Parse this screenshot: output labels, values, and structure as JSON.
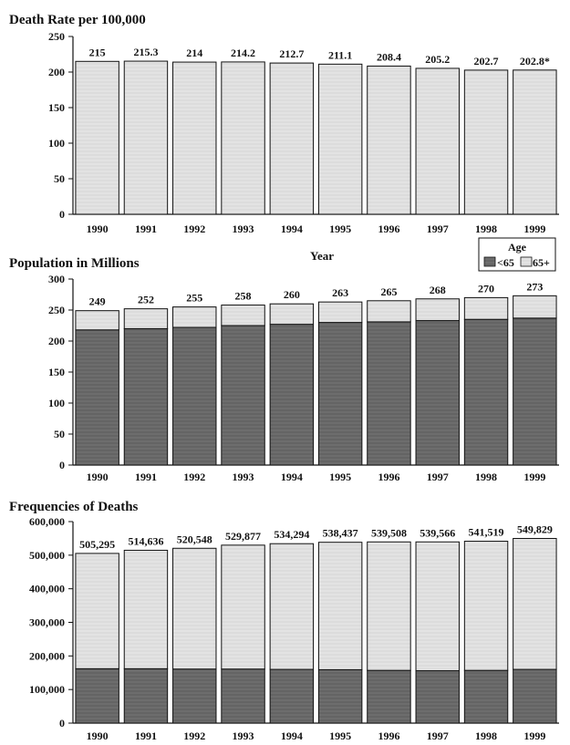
{
  "colors": {
    "light": "#e3e3e3",
    "dark": "#6d6d6d",
    "edge": "#111111"
  },
  "legend": {
    "title": "Age",
    "items": [
      "<65",
      "65+"
    ],
    "colors": [
      "#6d6d6d",
      "#e3e3e3"
    ]
  },
  "chart_data": [
    {
      "type": "bar",
      "title": "Death Rate per 100,000",
      "xlabel": "Year",
      "ylabel": "",
      "categories": [
        "1990",
        "1991",
        "1992",
        "1993",
        "1994",
        "1995",
        "1996",
        "1997",
        "1998",
        "1999"
      ],
      "ylim": [
        0,
        250
      ],
      "yticks": [
        "0",
        "50",
        "100",
        "150",
        "200",
        "250"
      ],
      "series": [
        {
          "values": [
            215,
            215.3,
            214,
            214.2,
            212.7,
            211.1,
            208.4,
            205.2,
            202.7,
            202.8
          ]
        }
      ],
      "value_labels": [
        "215",
        "215.3",
        "214",
        "214.2",
        "212.7",
        "211.1",
        "208.4",
        "205.2",
        "202.7",
        "202.8*"
      ]
    },
    {
      "type": "bar",
      "stacked": true,
      "title": "Population in Millions",
      "xlabel": "",
      "ylabel": "",
      "categories": [
        "1990",
        "1991",
        "1992",
        "1993",
        "1994",
        "1995",
        "1996",
        "1997",
        "1998",
        "1999"
      ],
      "ylim": [
        0,
        300
      ],
      "yticks": [
        "0",
        "50",
        "100",
        "150",
        "200",
        "250",
        "300"
      ],
      "series": [
        {
          "name": "<65",
          "values": [
            218,
            220,
            222,
            225,
            227,
            230,
            231,
            233,
            235,
            237
          ]
        },
        {
          "name": "65+",
          "values": [
            31,
            32,
            33,
            33,
            33,
            33,
            34,
            35,
            35,
            36
          ]
        }
      ],
      "value_labels": [
        "249",
        "252",
        "255",
        "258",
        "260",
        "263",
        "265",
        "268",
        "270",
        "273"
      ]
    },
    {
      "type": "bar",
      "stacked": true,
      "title": "Frequencies of Deaths",
      "xlabel": "",
      "ylabel": "",
      "categories": [
        "1990",
        "1991",
        "1992",
        "1993",
        "1994",
        "1995",
        "1996",
        "1997",
        "1998",
        "1999"
      ],
      "ylim": [
        0,
        600000
      ],
      "yticks": [
        "0",
        "100,000",
        "200,000",
        "300,000",
        "400,000",
        "500,000",
        "600,000"
      ],
      "series": [
        {
          "name": "<65",
          "values": [
            162000,
            162000,
            161000,
            161000,
            160000,
            159000,
            157000,
            156000,
            157000,
            160000
          ]
        },
        {
          "name": "65+",
          "values": [
            343295,
            352636,
            359548,
            368877,
            374294,
            379437,
            382508,
            383566,
            384519,
            389829
          ]
        }
      ],
      "value_labels": [
        "505,295",
        "514,636",
        "520,548",
        "529,877",
        "534,294",
        "538,437",
        "539,508",
        "539,566",
        "541,519",
        "549,829"
      ]
    }
  ]
}
